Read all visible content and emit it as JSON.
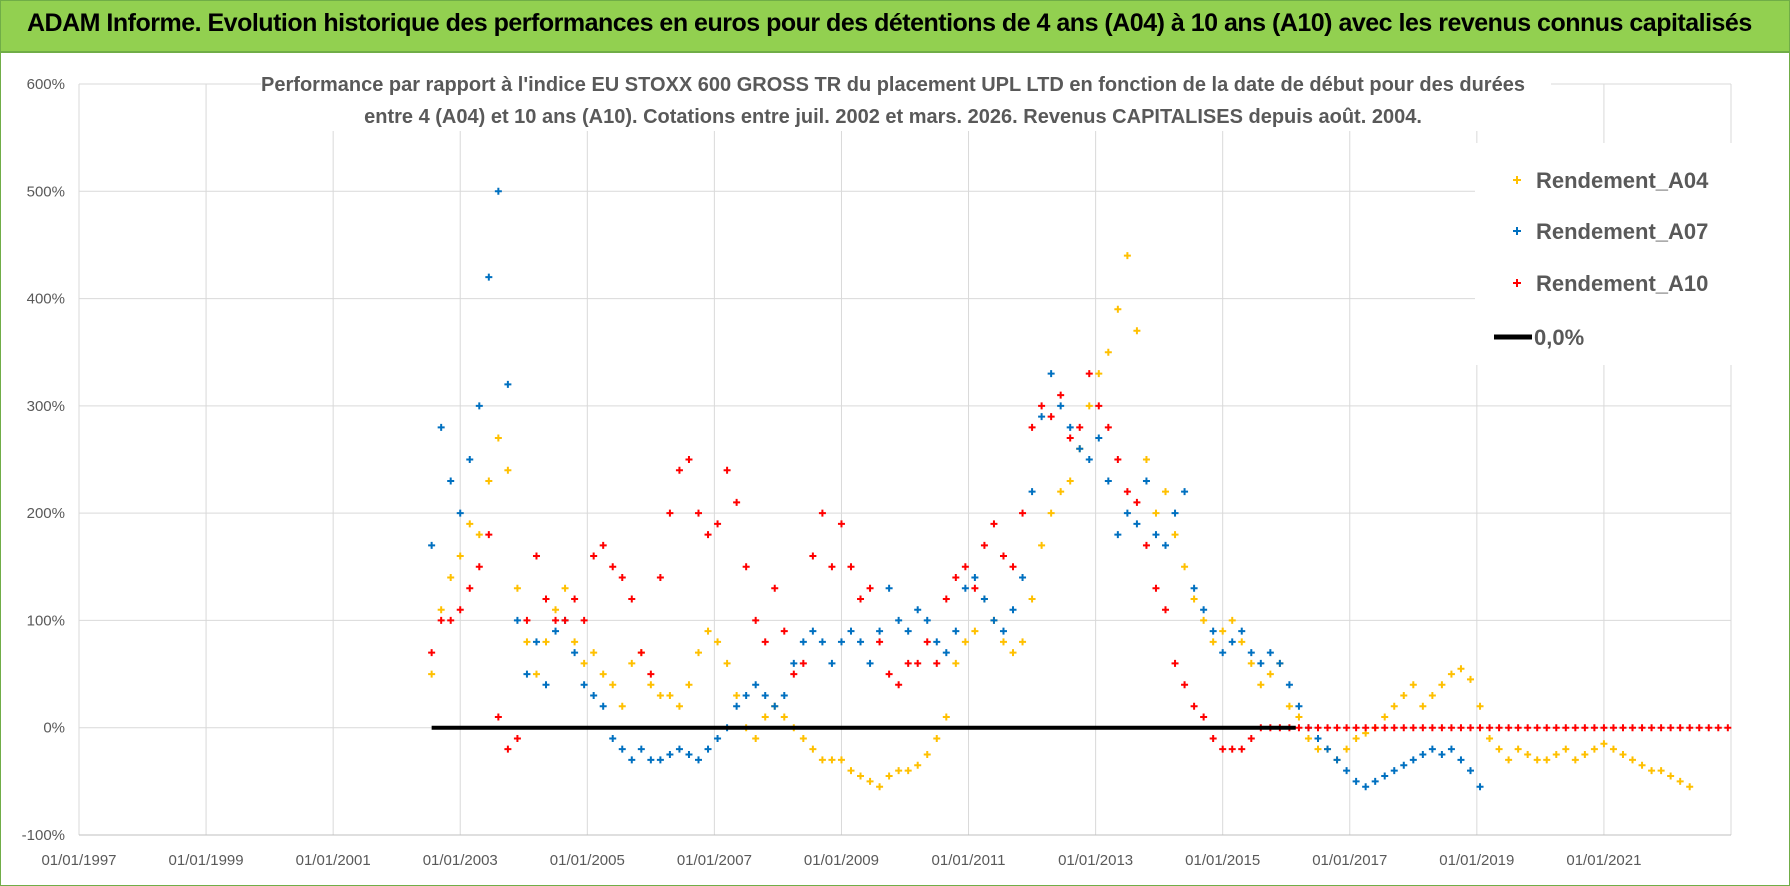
{
  "banner": {
    "title": "ADAM Informe. Evolution historique des performances en euros pour des détentions de 4 ans (A04) à 10 ans (A10) avec les revenus connus capitalisés"
  },
  "colors": {
    "banner_bg": "#92d050",
    "a04": "#ffc000",
    "a07": "#0070c0",
    "a10": "#ff0000",
    "zero": "#000000",
    "grid": "#d9d9d9",
    "text": "#595959"
  },
  "chart_data": {
    "type": "scatter",
    "title_lines": [
      "Performance par rapport à l'indice EU STOXX 600 GROSS TR  du placement UPL LTD en fonction de la date de début pour des durées",
      "entre 4 (A04) et 10 ans (A10). Cotations entre juil. 2002 et mars. 2026. Revenus CAPITALISES depuis août. 2004."
    ],
    "xlabel": "",
    "ylabel": "",
    "x_ticks": [
      "01/01/1997",
      "01/01/1999",
      "01/01/2001",
      "01/01/2003",
      "01/01/2005",
      "01/01/2007",
      "01/01/2009",
      "01/01/2011",
      "01/01/2013",
      "01/01/2015",
      "01/01/2017",
      "01/01/2019",
      "01/01/2021"
    ],
    "x_tick_years": [
      1997,
      1999,
      2001,
      2003,
      2005,
      2007,
      2009,
      2011,
      2013,
      2015,
      2017,
      2019,
      2021
    ],
    "xlim": [
      1997.0,
      2023.0
    ],
    "y_ticks": [
      "-100%",
      "0%",
      "100%",
      "200%",
      "300%",
      "400%",
      "500%",
      "600%"
    ],
    "y_tick_values": [
      -100,
      0,
      100,
      200,
      300,
      400,
      500,
      600
    ],
    "ylim": [
      -100,
      600
    ],
    "legend_position": "top-right",
    "series": [
      {
        "name": "Rendement_A04",
        "marker": "plus",
        "color": "#ffc000",
        "x": [
          2002.55,
          2002.7,
          2002.85,
          2003.0,
          2003.15,
          2003.3,
          2003.45,
          2003.6,
          2003.75,
          2003.9,
          2004.05,
          2004.2,
          2004.35,
          2004.5,
          2004.65,
          2004.8,
          2004.95,
          2005.1,
          2005.25,
          2005.4,
          2005.55,
          2005.7,
          2005.85,
          2006.0,
          2006.15,
          2006.3,
          2006.45,
          2006.6,
          2006.75,
          2006.9,
          2007.05,
          2007.2,
          2007.35,
          2007.5,
          2007.65,
          2007.8,
          2007.95,
          2008.1,
          2008.25,
          2008.4,
          2008.55,
          2008.7,
          2008.85,
          2009.0,
          2009.15,
          2009.3,
          2009.45,
          2009.6,
          2009.75,
          2009.9,
          2010.05,
          2010.2,
          2010.35,
          2010.5,
          2010.65,
          2010.8,
          2010.95,
          2011.1,
          2011.25,
          2011.4,
          2011.55,
          2011.7,
          2011.85,
          2012.0,
          2012.15,
          2012.3,
          2012.45,
          2012.6,
          2012.75,
          2012.9,
          2013.05,
          2013.2,
          2013.35,
          2013.5,
          2013.65,
          2013.8,
          2013.95,
          2014.1,
          2014.25,
          2014.4,
          2014.55,
          2014.7,
          2014.85,
          2015.0,
          2015.15,
          2015.3,
          2015.45,
          2015.6,
          2015.75,
          2015.9,
          2016.05,
          2016.2,
          2016.35,
          2016.5,
          2016.65,
          2016.8,
          2016.95,
          2017.1,
          2017.25,
          2017.4,
          2017.55,
          2017.7,
          2017.85,
          2018.0,
          2018.15,
          2018.3,
          2018.45,
          2018.6,
          2018.75,
          2018.9,
          2019.05,
          2019.2,
          2019.35,
          2019.5,
          2019.65,
          2019.8,
          2019.95,
          2020.1,
          2020.25,
          2020.4,
          2020.55,
          2020.7,
          2020.85,
          2021.0,
          2021.15,
          2021.3,
          2021.45,
          2021.6,
          2021.75,
          2021.9,
          2022.05,
          2022.2,
          2022.35
        ],
        "y": [
          50,
          110,
          140,
          160,
          190,
          180,
          230,
          270,
          240,
          130,
          80,
          50,
          80,
          110,
          130,
          80,
          60,
          70,
          50,
          40,
          20,
          60,
          70,
          40,
          30,
          30,
          20,
          40,
          70,
          90,
          80,
          60,
          30,
          0,
          -10,
          10,
          20,
          10,
          0,
          -10,
          -20,
          -30,
          -30,
          -30,
          -40,
          -45,
          -50,
          -55,
          -45,
          -40,
          -40,
          -35,
          -25,
          -10,
          10,
          60,
          80,
          90,
          120,
          100,
          80,
          70,
          80,
          120,
          170,
          200,
          220,
          230,
          260,
          300,
          330,
          350,
          390,
          440,
          370,
          250,
          200,
          220,
          180,
          150,
          120,
          100,
          80,
          90,
          100,
          80,
          60,
          40,
          50,
          60,
          20,
          10,
          -10,
          -20,
          -20,
          -30,
          -20,
          -10,
          -5,
          0,
          10,
          20,
          30,
          40,
          20,
          30,
          40,
          50,
          55,
          45,
          20,
          -10,
          -20,
          -30,
          -20,
          -25,
          -30,
          -30,
          -25,
          -20,
          -30,
          -25,
          -20,
          -15,
          -20,
          -25,
          -30,
          -35,
          -40,
          -40,
          -45,
          -50,
          -55
        ]
      },
      {
        "name": "Rendement_A07",
        "marker": "plus",
        "color": "#0070c0",
        "x": [
          2002.55,
          2002.7,
          2002.85,
          2003.0,
          2003.15,
          2003.3,
          2003.45,
          2003.6,
          2003.75,
          2003.9,
          2004.05,
          2004.2,
          2004.35,
          2004.5,
          2004.65,
          2004.8,
          2004.95,
          2005.1,
          2005.25,
          2005.4,
          2005.55,
          2005.7,
          2005.85,
          2006.0,
          2006.15,
          2006.3,
          2006.45,
          2006.6,
          2006.75,
          2006.9,
          2007.05,
          2007.2,
          2007.35,
          2007.5,
          2007.65,
          2007.8,
          2007.95,
          2008.1,
          2008.25,
          2008.4,
          2008.55,
          2008.7,
          2008.85,
          2009.0,
          2009.15,
          2009.3,
          2009.45,
          2009.6,
          2009.75,
          2009.9,
          2010.05,
          2010.2,
          2010.35,
          2010.5,
          2010.65,
          2010.8,
          2010.95,
          2011.1,
          2011.25,
          2011.4,
          2011.55,
          2011.7,
          2011.85,
          2012.0,
          2012.15,
          2012.3,
          2012.45,
          2012.6,
          2012.75,
          2012.9,
          2013.05,
          2013.2,
          2013.35,
          2013.5,
          2013.65,
          2013.8,
          2013.95,
          2014.1,
          2014.25,
          2014.4,
          2014.55,
          2014.7,
          2014.85,
          2015.0,
          2015.15,
          2015.3,
          2015.45,
          2015.6,
          2015.75,
          2015.9,
          2016.05,
          2016.2,
          2016.35,
          2016.5,
          2016.65,
          2016.8,
          2016.95,
          2017.1,
          2017.25,
          2017.4,
          2017.55,
          2017.7,
          2017.85,
          2018.0,
          2018.15,
          2018.3,
          2018.45,
          2018.6,
          2018.75,
          2018.9,
          2019.05
        ],
        "y": [
          170,
          280,
          230,
          200,
          250,
          300,
          420,
          500,
          320,
          100,
          50,
          80,
          40,
          90,
          100,
          70,
          40,
          30,
          20,
          -10,
          -20,
          -30,
          -20,
          -30,
          -30,
          -25,
          -20,
          -25,
          -30,
          -20,
          -10,
          0,
          20,
          30,
          40,
          30,
          20,
          30,
          60,
          80,
          90,
          80,
          60,
          80,
          90,
          80,
          60,
          90,
          130,
          100,
          90,
          110,
          100,
          80,
          70,
          90,
          130,
          140,
          120,
          100,
          90,
          110,
          140,
          220,
          290,
          330,
          300,
          280,
          260,
          250,
          270,
          230,
          180,
          200,
          190,
          230,
          180,
          170,
          200,
          220,
          130,
          110,
          90,
          70,
          80,
          90,
          70,
          60,
          70,
          60,
          40,
          20,
          0,
          -10,
          -20,
          -30,
          -40,
          -50,
          -55,
          -50,
          -45,
          -40,
          -35,
          -30,
          -25,
          -20,
          -25,
          -20,
          -30,
          -40,
          -55
        ]
      },
      {
        "name": "Rendement_A10",
        "marker": "plus",
        "color": "#ff0000",
        "x": [
          2002.55,
          2002.7,
          2002.85,
          2003.0,
          2003.15,
          2003.3,
          2003.45,
          2003.6,
          2003.75,
          2003.9,
          2004.05,
          2004.2,
          2004.35,
          2004.5,
          2004.65,
          2004.8,
          2004.95,
          2005.1,
          2005.25,
          2005.4,
          2005.55,
          2005.7,
          2005.85,
          2006.0,
          2006.15,
          2006.3,
          2006.45,
          2006.6,
          2006.75,
          2006.9,
          2007.05,
          2007.2,
          2007.35,
          2007.5,
          2007.65,
          2007.8,
          2007.95,
          2008.1,
          2008.25,
          2008.4,
          2008.55,
          2008.7,
          2008.85,
          2009.0,
          2009.15,
          2009.3,
          2009.45,
          2009.6,
          2009.75,
          2009.9,
          2010.05,
          2010.2,
          2010.35,
          2010.5,
          2010.65,
          2010.8,
          2010.95,
          2011.1,
          2011.25,
          2011.4,
          2011.55,
          2011.7,
          2011.85,
          2012.0,
          2012.15,
          2012.3,
          2012.45,
          2012.6,
          2012.75,
          2012.9,
          2013.05,
          2013.2,
          2013.35,
          2013.5,
          2013.65,
          2013.8,
          2013.95,
          2014.1,
          2014.25,
          2014.4,
          2014.55,
          2014.7,
          2014.85,
          2015.0,
          2015.15,
          2015.3,
          2015.45,
          2015.6,
          2015.75,
          2015.9,
          2016.05,
          2016.2,
          2016.35,
          2016.5,
          2016.65,
          2016.8,
          2016.95,
          2017.1,
          2017.25,
          2017.4,
          2017.55,
          2017.7,
          2017.85,
          2018.0,
          2018.15,
          2018.3,
          2018.45,
          2018.6,
          2018.75,
          2018.9,
          2019.05,
          2019.2,
          2019.35,
          2019.5,
          2019.65,
          2019.8,
          2019.95,
          2020.1,
          2020.25,
          2020.4,
          2020.55,
          2020.7,
          2020.85,
          2021.0,
          2021.15,
          2021.3,
          2021.45,
          2021.6,
          2021.75,
          2021.9,
          2022.05,
          2022.2,
          2022.35,
          2022.5,
          2022.65,
          2022.8,
          2022.95
        ],
        "y": [
          70,
          100,
          100,
          110,
          130,
          150,
          180,
          10,
          -20,
          -10,
          100,
          160,
          120,
          100,
          100,
          120,
          100,
          160,
          170,
          150,
          140,
          120,
          70,
          50,
          140,
          200,
          240,
          250,
          200,
          180,
          190,
          240,
          210,
          150,
          100,
          80,
          130,
          90,
          50,
          60,
          160,
          200,
          150,
          190,
          150,
          120,
          130,
          80,
          50,
          40,
          60,
          60,
          80,
          60,
          120,
          140,
          150,
          130,
          170,
          190,
          160,
          150,
          200,
          280,
          300,
          290,
          310,
          270,
          280,
          330,
          300,
          280,
          250,
          220,
          210,
          170,
          130,
          110,
          60,
          40,
          20,
          10,
          -10,
          -20,
          -20,
          -20,
          -10,
          0,
          0,
          0,
          0,
          0,
          0,
          0,
          0,
          0,
          0,
          0,
          0,
          0,
          0,
          0,
          0,
          0,
          0,
          0,
          0,
          0,
          0,
          0,
          0,
          0,
          0,
          0,
          0,
          0,
          0,
          0,
          0,
          0,
          0,
          0,
          0,
          0,
          0,
          0,
          0,
          0,
          0,
          0,
          0,
          0,
          0,
          0,
          0,
          0,
          0
        ]
      },
      {
        "name": "0,0%",
        "marker": "line",
        "color": "#000000",
        "x": [
          2002.55,
          2016.15
        ],
        "y": [
          0,
          0
        ]
      }
    ]
  }
}
